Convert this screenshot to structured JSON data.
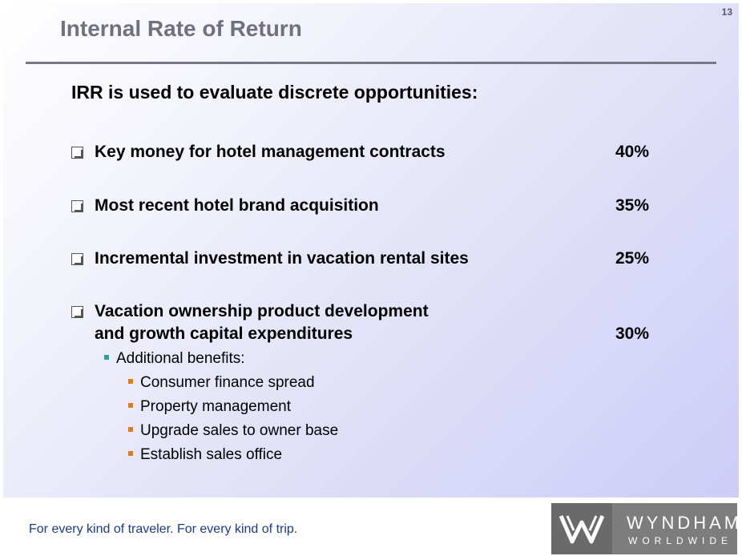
{
  "slide": {
    "page_number": "13",
    "title": "Internal Rate of Return",
    "heading": "IRR is used to evaluate discrete opportunities:",
    "items": [
      {
        "label": "Key money for hotel management contracts",
        "pct": "40%"
      },
      {
        "label": "Most recent hotel brand acquisition",
        "pct": "35%"
      },
      {
        "label": "Incremental investment in vacation rental sites",
        "pct": "25%"
      },
      {
        "label_line1": "Vacation ownership product development",
        "label_line2": "and growth capital expenditures",
        "pct": "30%"
      }
    ],
    "sub_heading": "Additional benefits:",
    "benefits": [
      "Consumer finance spread",
      "Property management",
      "Upgrade sales to owner base",
      "Establish sales office"
    ]
  },
  "footer": {
    "tagline": "For every kind of traveler. For every kind of trip.",
    "logo_name": "WYNDHAM",
    "logo_sub": "WORLDWIDE"
  },
  "colors": {
    "title": "#707080",
    "tagline": "#1a3a8a",
    "teal_bullet": "#2aa198",
    "orange_bullet": "#e07e1c"
  }
}
